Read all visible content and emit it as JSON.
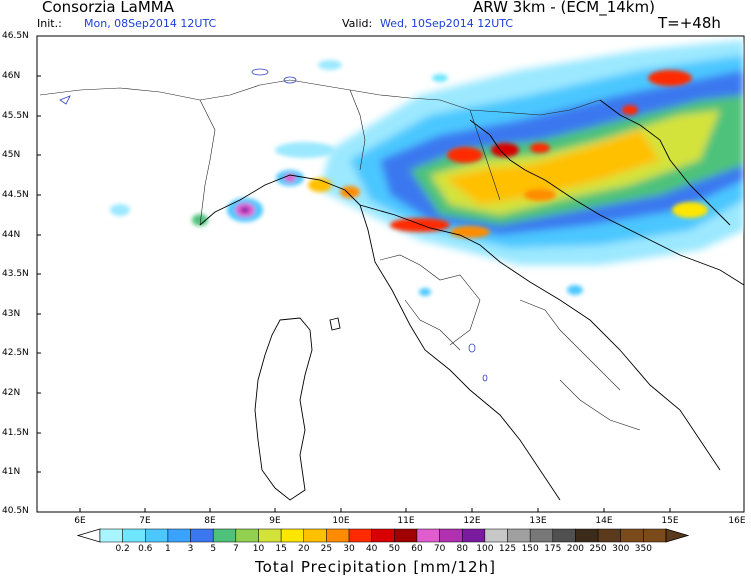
{
  "header": {
    "title_left": "Consorzia LaMMA",
    "title_right": "ARW 3km - (ECM_14km)",
    "init_label": "Init.:",
    "init_value": "Mon, 08Sep2014 12UTC",
    "valid_label": "Valid:",
    "valid_value": "Wed, 10Sep2014 12UTC",
    "lead_time": "T=+48h"
  },
  "map": {
    "lat_labels": [
      "46.5N",
      "46N",
      "45.5N",
      "45N",
      "44.5N",
      "44N",
      "43.5N",
      "43N",
      "42.5N",
      "42N",
      "41.5N",
      "41N",
      "40.5N"
    ],
    "lon_labels": [
      "6E",
      "7E",
      "8E",
      "9E",
      "10E",
      "11E",
      "12E",
      "13E",
      "14E",
      "15E",
      "16E"
    ]
  },
  "legend": {
    "title": "Total Precipitation [mm/12h]",
    "levels": [
      "0.2",
      "0.6",
      "1",
      "3",
      "5",
      "7",
      "10",
      "15",
      "20",
      "25",
      "30",
      "40",
      "50",
      "60",
      "70",
      "80",
      "100",
      "125",
      "150",
      "175",
      "200",
      "250",
      "300",
      "350"
    ],
    "colors": [
      "#a8f5ff",
      "#6fe6ff",
      "#4cc7ff",
      "#3aa3ff",
      "#3b78f0",
      "#4ec27a",
      "#92d050",
      "#d4e33a",
      "#ffe600",
      "#ffc000",
      "#ff8c00",
      "#ff2a00",
      "#d80000",
      "#a00000",
      "#e05ccf",
      "#b030b0",
      "#7a1a9e",
      "#c8c8c8",
      "#a0a0a0",
      "#787878",
      "#505050",
      "#3c2a1a",
      "#5a3a1a",
      "#7a4a1a"
    ]
  }
}
